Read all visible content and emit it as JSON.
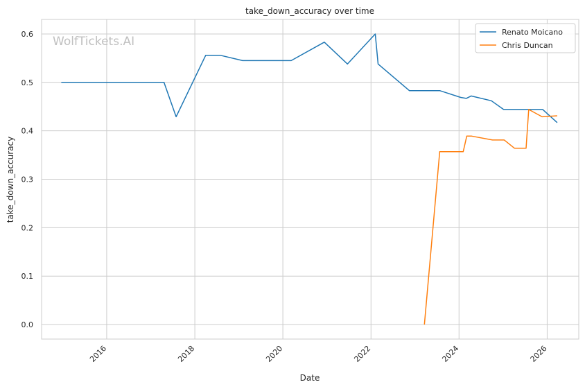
{
  "chart_data": {
    "type": "line",
    "title": "take_down_accuracy over time",
    "xlabel": "Date",
    "ylabel": "take_down_accuracy",
    "watermark": "WolfTickets.AI",
    "x_ticks": [
      "2016",
      "2018",
      "2020",
      "2022",
      "2024",
      "2026"
    ],
    "y_ticks": [
      "0.0",
      "0.1",
      "0.2",
      "0.3",
      "0.4",
      "0.5",
      "0.6"
    ],
    "xlim": [
      "2014-07-10",
      "2026-09-20"
    ],
    "ylim": [
      -0.03,
      0.63
    ],
    "grid": true,
    "legend_position": "top-right",
    "series": [
      {
        "name": "Renato Moicano",
        "color": "#1f77b4",
        "points": [
          [
            "2014-12-20",
            0.5
          ],
          [
            "2017-04-20",
            0.5
          ],
          [
            "2017-07-30",
            0.429
          ],
          [
            "2018-04-01",
            0.556
          ],
          [
            "2018-07-30",
            0.556
          ],
          [
            "2019-02-01",
            0.545
          ],
          [
            "2020-03-10",
            0.545
          ],
          [
            "2020-12-10",
            0.583
          ],
          [
            "2021-06-20",
            0.538
          ],
          [
            "2022-02-05",
            0.6
          ],
          [
            "2022-03-01",
            0.538
          ],
          [
            "2022-11-15",
            0.483
          ],
          [
            "2023-07-25",
            0.483
          ],
          [
            "2024-01-15",
            0.469
          ],
          [
            "2024-03-01",
            0.467
          ],
          [
            "2024-04-10",
            0.472
          ],
          [
            "2024-09-25",
            0.462
          ],
          [
            "2025-01-05",
            0.444
          ],
          [
            "2025-11-25",
            0.444
          ],
          [
            "2026-03-25",
            0.417
          ]
        ]
      },
      {
        "name": "Chris Duncan",
        "color": "#ff7f0e",
        "points": [
          [
            "2023-03-20",
            0.0
          ],
          [
            "2023-07-25",
            0.357
          ],
          [
            "2024-02-05",
            0.357
          ],
          [
            "2024-03-05",
            0.389
          ],
          [
            "2024-04-15",
            0.389
          ],
          [
            "2024-10-05",
            0.381
          ],
          [
            "2025-01-10",
            0.381
          ],
          [
            "2025-04-05",
            0.364
          ],
          [
            "2025-07-10",
            0.364
          ],
          [
            "2025-08-01",
            0.444
          ],
          [
            "2025-11-20",
            0.429
          ],
          [
            "2026-03-25",
            0.431
          ]
        ]
      }
    ]
  }
}
